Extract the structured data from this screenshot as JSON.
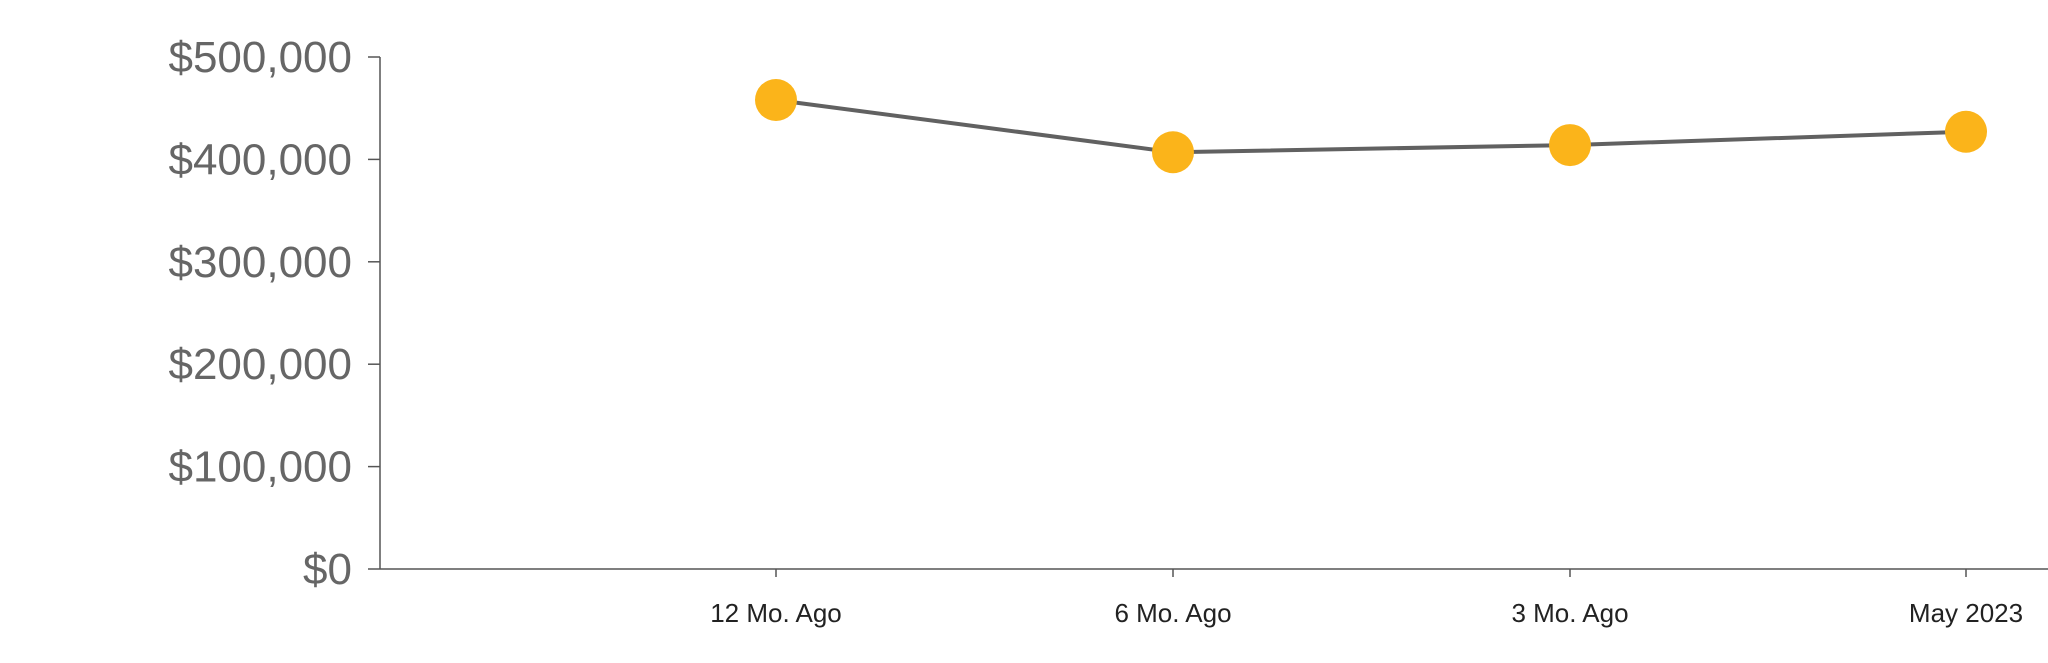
{
  "chart_data": {
    "type": "line",
    "title": "",
    "xlabel": "",
    "ylabel": "",
    "categories": [
      "12 Mo. Ago",
      "6 Mo. Ago",
      "3 Mo. Ago",
      "May 2023"
    ],
    "series": [
      {
        "values": [
          458000,
          407000,
          414000,
          427000
        ]
      }
    ],
    "ylim": [
      0,
      500000
    ],
    "y_ticks": [
      0,
      100000,
      200000,
      300000,
      400000,
      500000
    ],
    "y_tick_labels": [
      "$0",
      "$100,000",
      "$200,000",
      "$300,000",
      "$400,000",
      "$500,000"
    ],
    "grid": false,
    "legend": "none",
    "colors": {
      "line": "#616161",
      "marker": "#FBB41A",
      "axis": "#555555"
    }
  }
}
